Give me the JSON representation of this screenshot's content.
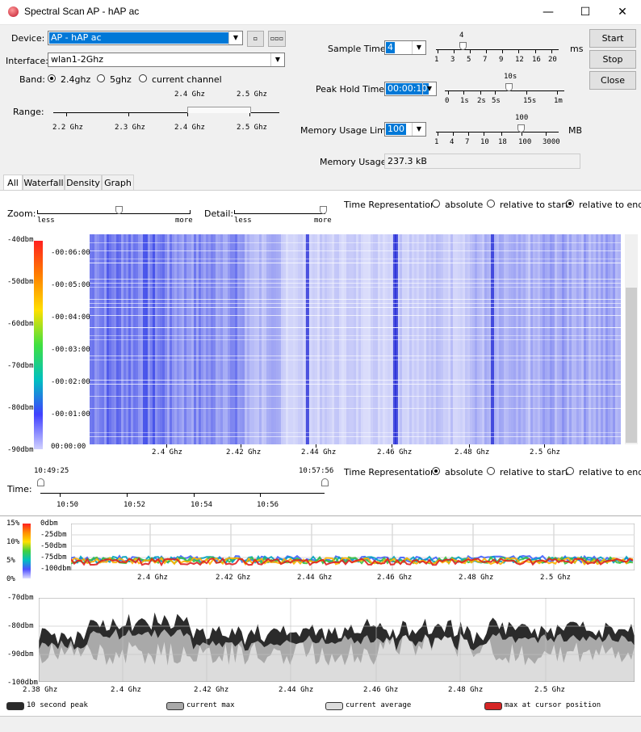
{
  "window": {
    "title": "Spectral Scan AP - hAP ac",
    "minimize": "—",
    "maximize": "☐",
    "close": "✕"
  },
  "device": {
    "label": "Device:",
    "value": "AP - hAP ac",
    "btn1": "▫",
    "btn2": "▫▫▫"
  },
  "interface": {
    "label": "Interface:",
    "value": "wlan1-2Ghz"
  },
  "band": {
    "label": "Band:",
    "options": [
      "2.4ghz",
      "5ghz",
      "current channel"
    ],
    "selected": "2.4ghz"
  },
  "range": {
    "label": "Range:",
    "top_labels": [
      "2.4 Ghz",
      "2.5 Ghz"
    ],
    "ticks": [
      "2.2 Ghz",
      "2.3 Ghz",
      "2.4 Ghz",
      "2.5 Ghz"
    ]
  },
  "sample_time": {
    "label": "Sample Time:",
    "value": "4",
    "marker": "4",
    "ticks": [
      "1",
      "3",
      "5",
      "7",
      "9",
      "12",
      "16",
      "20"
    ],
    "unit": "ms"
  },
  "peak_hold": {
    "label": "Peak Hold Time:",
    "value": "00:00:10",
    "marker": "10s",
    "ticks": [
      "0",
      "1s",
      "2s",
      "5s",
      "15s",
      "1m"
    ]
  },
  "memory_limit": {
    "label": "Memory Usage Limit:",
    "value": "100",
    "marker": "100",
    "ticks": [
      "1",
      "4",
      "7",
      "10",
      "18",
      "100",
      "3000"
    ],
    "unit": "MB"
  },
  "memory_usage": {
    "label": "Memory Usage:",
    "value": "237.3 kB"
  },
  "buttons": {
    "start": "Start",
    "stop": "Stop",
    "close": "Close"
  },
  "tabs": [
    "All",
    "Waterfall",
    "Density",
    "Graph"
  ],
  "zoom": {
    "label": "Zoom:",
    "less": "less",
    "more": "more"
  },
  "detail": {
    "label": "Detail:",
    "less": "less",
    "more": "more"
  },
  "time_rep_top": {
    "label": "Time Representation:",
    "options": [
      "absolute",
      "relative to start",
      "relative to end"
    ],
    "selected": "relative to end"
  },
  "waterfall": {
    "dbm_labels": [
      "-40dbm",
      "-50dbm",
      "-60dbm",
      "-70dbm",
      "-80dbm",
      "-90dbm"
    ],
    "time_labels": [
      "-00:06:00",
      "-00:05:00",
      "-00:04:00",
      "-00:03:00",
      "-00:02:00",
      "-00:01:00",
      "00:00:00"
    ],
    "freq_labels": [
      "2.4 Ghz",
      "2.42 Ghz",
      "2.44 Ghz",
      "2.46 Ghz",
      "2.48 Ghz",
      "2.5 Ghz"
    ]
  },
  "time_slider": {
    "label": "Time:",
    "start": "10:49:25",
    "end": "10:57:56",
    "ticks": [
      "10:50",
      "10:52",
      "10:54",
      "10:56"
    ]
  },
  "time_rep_bottom": {
    "label": "Time Representation:",
    "options": [
      "absolute",
      "relative to start",
      "relative to end"
    ],
    "selected": "absolute"
  },
  "density": {
    "pct_labels": [
      "15%",
      "10%",
      "5%",
      "0%"
    ],
    "dbm_labels": [
      "0dbm",
      "-25dbm",
      "-50dbm",
      "-75dbm",
      "-100dbm"
    ],
    "freq_labels": [
      "2.4 Ghz",
      "2.42 Ghz",
      "2.44 Ghz",
      "2.46 Ghz",
      "2.48 Ghz",
      "2.5 Ghz"
    ]
  },
  "graph": {
    "dbm_labels": [
      "-70dbm",
      "-80dbm",
      "-90dbm",
      "-100dbm"
    ],
    "freq_labels": [
      "2.38 Ghz",
      "2.4 Ghz",
      "2.42 Ghz",
      "2.44 Ghz",
      "2.46 Ghz",
      "2.48 Ghz",
      "2.5 Ghz"
    ]
  },
  "legend": [
    {
      "label": "10 second peak",
      "color": "#2b2b2b"
    },
    {
      "label": "current max",
      "color": "#a9a9a9"
    },
    {
      "label": "current average",
      "color": "#dcdcdc"
    },
    {
      "label": "max at cursor position",
      "color": "#d52525"
    }
  ],
  "colors": {
    "waterfall_blue": "#3a46e8",
    "accent": "#0078d7"
  }
}
